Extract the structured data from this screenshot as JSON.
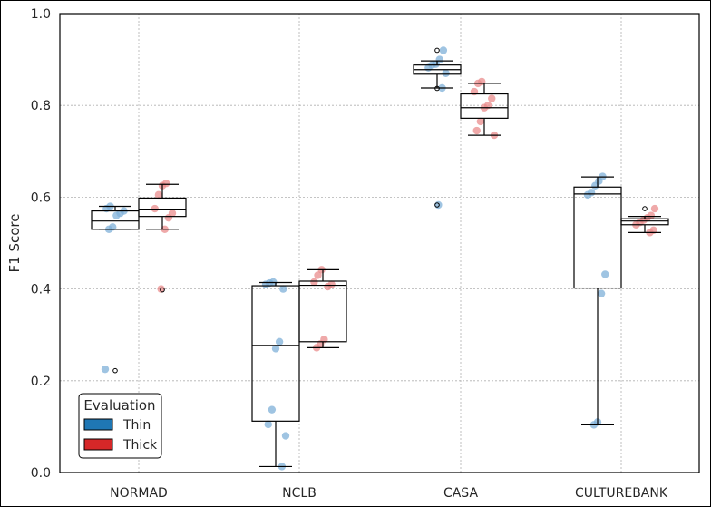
{
  "chart_data": {
    "type": "box",
    "title": "",
    "xlabel": "",
    "ylabel": "F1 Score",
    "ylim": [
      0.0,
      1.0
    ],
    "yticks": [
      "0.0",
      "0.2",
      "0.4",
      "0.6",
      "0.8",
      "1.0"
    ],
    "grid": true,
    "categories": [
      "NORMAD",
      "NCLB",
      "CASA",
      "CULTUREBANK"
    ],
    "legend": {
      "title": "Evaluation",
      "placement": "bottom-left",
      "entries": [
        {
          "label": "Thin",
          "color": "#1f77b4"
        },
        {
          "label": "Thick",
          "color": "#d62728"
        }
      ]
    },
    "series": [
      {
        "name": "Thin",
        "color": "#1f77b4",
        "point_color": "#7fb0d8",
        "boxes": [
          {
            "whislo": 0.53,
            "q1": 0.53,
            "med": 0.548,
            "q3": 0.57,
            "whishi": 0.58,
            "fliers": [
              0.222
            ]
          },
          {
            "whislo": 0.013,
            "q1": 0.112,
            "med": 0.277,
            "q3": 0.407,
            "whishi": 0.414,
            "fliers": []
          },
          {
            "whislo": 0.838,
            "q1": 0.868,
            "med": 0.878,
            "q3": 0.888,
            "whishi": 0.897,
            "fliers": [
              0.92,
              0.837,
              0.583
            ]
          },
          {
            "whislo": 0.104,
            "q1": 0.402,
            "med": 0.607,
            "q3": 0.622,
            "whishi": 0.644,
            "fliers": []
          }
        ],
        "points": [
          [
            0.225,
            0.53,
            0.535,
            0.56,
            0.565,
            0.57,
            0.575,
            0.58
          ],
          [
            0.013,
            0.08,
            0.105,
            0.137,
            0.27,
            0.285,
            0.4,
            0.41,
            0.413,
            0.415
          ],
          [
            0.583,
            0.838,
            0.87,
            0.882,
            0.888,
            0.89,
            0.9,
            0.92
          ],
          [
            0.104,
            0.11,
            0.39,
            0.432,
            0.605,
            0.61,
            0.625,
            0.635,
            0.645
          ]
        ]
      },
      {
        "name": "Thick",
        "color": "#d62728",
        "point_color": "#ea8c8c",
        "boxes": [
          {
            "whislo": 0.53,
            "q1": 0.558,
            "med": 0.574,
            "q3": 0.598,
            "whishi": 0.628,
            "fliers": [
              0.398
            ]
          },
          {
            "whislo": 0.272,
            "q1": 0.285,
            "med": 0.408,
            "q3": 0.417,
            "whishi": 0.442,
            "fliers": []
          },
          {
            "whislo": 0.735,
            "q1": 0.772,
            "med": 0.795,
            "q3": 0.825,
            "whishi": 0.848,
            "fliers": []
          },
          {
            "whislo": 0.523,
            "q1": 0.54,
            "med": 0.548,
            "q3": 0.553,
            "whishi": 0.558,
            "fliers": [
              0.575
            ]
          }
        ],
        "points": [
          [
            0.4,
            0.53,
            0.555,
            0.565,
            0.575,
            0.605,
            0.625,
            0.63
          ],
          [
            0.272,
            0.28,
            0.29,
            0.405,
            0.41,
            0.415,
            0.43,
            0.442
          ],
          [
            0.735,
            0.745,
            0.765,
            0.795,
            0.8,
            0.815,
            0.83,
            0.848,
            0.852
          ],
          [
            0.523,
            0.528,
            0.54,
            0.545,
            0.55,
            0.555,
            0.56,
            0.575
          ]
        ]
      }
    ]
  }
}
